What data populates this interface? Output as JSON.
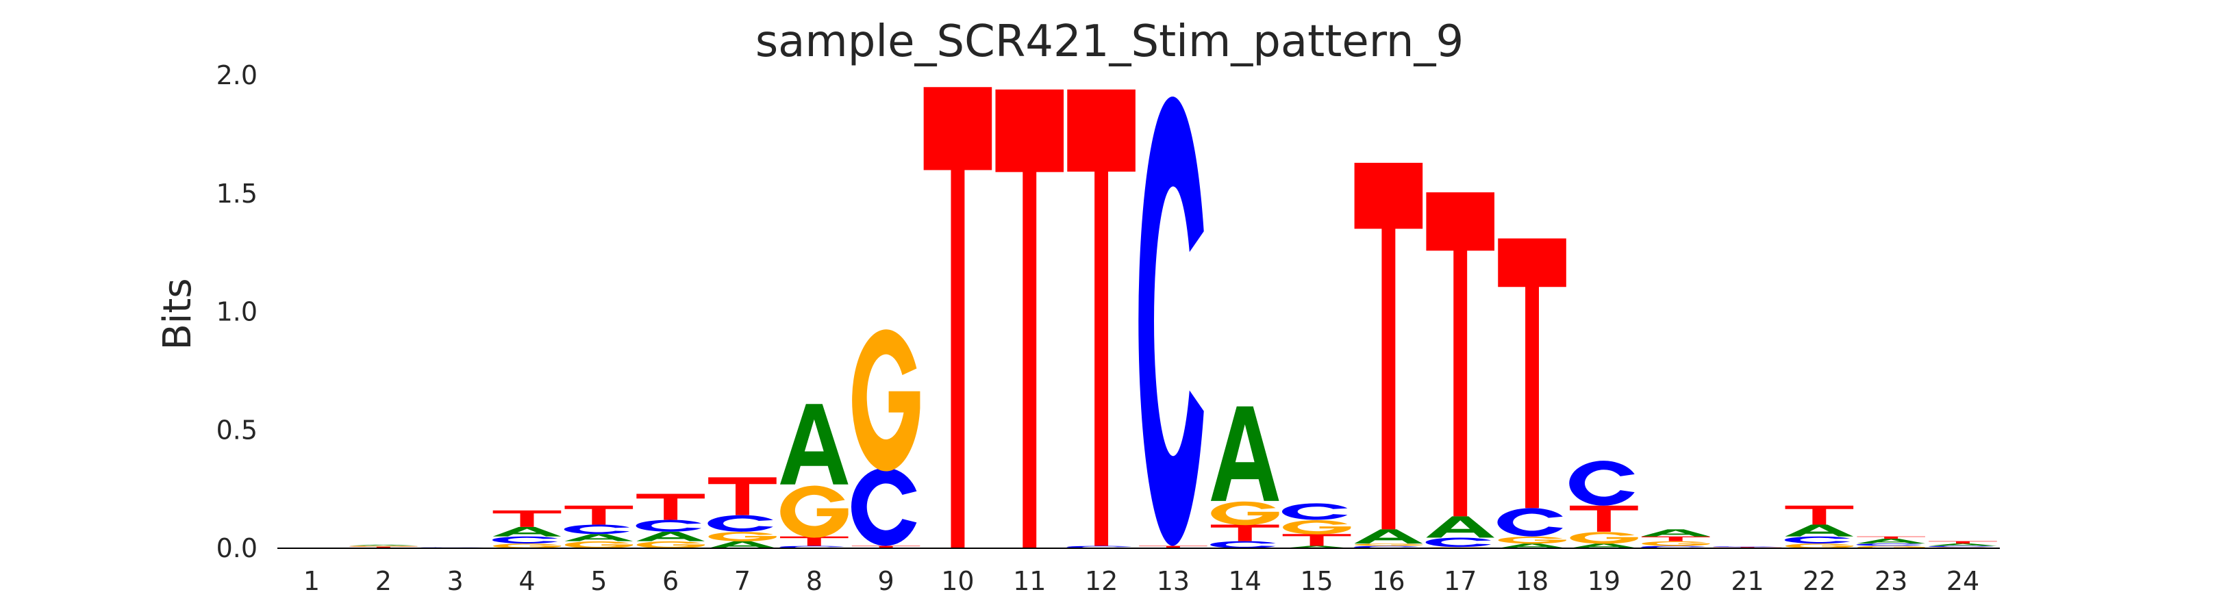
{
  "chart_data": {
    "type": "sequence-logo",
    "title": "sample_SCR421_Stim_pattern_9",
    "xlabel": "",
    "ylabel": "Bits",
    "ylim": [
      0,
      2.0
    ],
    "yticks": [
      "0.0",
      "0.5",
      "1.0",
      "1.5",
      "2.0"
    ],
    "ytick_values": [
      0,
      0.5,
      1.0,
      1.5,
      2.0
    ],
    "xticks": [
      "1",
      "2",
      "3",
      "4",
      "5",
      "6",
      "7",
      "8",
      "9",
      "10",
      "11",
      "12",
      "13",
      "14",
      "15",
      "16",
      "17",
      "18",
      "19",
      "20",
      "21",
      "22",
      "23",
      "24"
    ],
    "grid": false,
    "colors": {
      "A": "#008000",
      "C": "#0000ff",
      "G": "#ffa500",
      "T": "#ff0000"
    },
    "positions": [
      [],
      [
        [
          "C",
          0.003
        ],
        [
          "T",
          0.004
        ],
        [
          "G",
          0.004
        ],
        [
          "A",
          0.004
        ]
      ],
      [
        [
          "A",
          0.002
        ],
        [
          "C",
          0.002
        ]
      ],
      [
        [
          "G",
          0.02
        ],
        [
          "C",
          0.03
        ],
        [
          "A",
          0.04
        ],
        [
          "T",
          0.07
        ]
      ],
      [
        [
          "G",
          0.03
        ],
        [
          "A",
          0.03
        ],
        [
          "C",
          0.04
        ],
        [
          "T",
          0.08
        ]
      ],
      [
        [
          "G",
          0.03
        ],
        [
          "A",
          0.04
        ],
        [
          "C",
          0.05
        ],
        [
          "T",
          0.11
        ]
      ],
      [
        [
          "A",
          0.03
        ],
        [
          "G",
          0.04
        ],
        [
          "C",
          0.07
        ],
        [
          "T",
          0.16
        ]
      ],
      [
        [
          "C",
          0.01
        ],
        [
          "T",
          0.04
        ],
        [
          "G",
          0.22
        ],
        [
          "A",
          0.34
        ]
      ],
      [
        [
          "T",
          0.01
        ],
        [
          "C",
          0.33
        ],
        [
          "G",
          0.6
        ]
      ],
      [
        [
          "T",
          1.95
        ]
      ],
      [
        [
          "T",
          1.94
        ]
      ],
      [
        [
          "C",
          0.01
        ],
        [
          "T",
          1.93
        ]
      ],
      [
        [
          "T",
          0.01
        ],
        [
          "C",
          1.9
        ]
      ],
      [
        [
          "C",
          0.03
        ],
        [
          "T",
          0.07
        ],
        [
          "G",
          0.1
        ],
        [
          "A",
          0.4
        ]
      ],
      [
        [
          "A",
          0.01
        ],
        [
          "T",
          0.05
        ],
        [
          "G",
          0.06
        ],
        [
          "C",
          0.07
        ]
      ],
      [
        [
          "C",
          0.01
        ],
        [
          "G",
          0.01
        ],
        [
          "A",
          0.06
        ],
        [
          "T",
          1.55
        ]
      ],
      [
        [
          "G",
          0.005
        ],
        [
          "C",
          0.04
        ],
        [
          "A",
          0.09
        ],
        [
          "T",
          1.37
        ]
      ],
      [
        [
          "A",
          0.02
        ],
        [
          "G",
          0.03
        ],
        [
          "C",
          0.12
        ],
        [
          "T",
          1.14
        ]
      ],
      [
        [
          "A",
          0.02
        ],
        [
          "G",
          0.05
        ],
        [
          "T",
          0.11
        ],
        [
          "C",
          0.19
        ]
      ],
      [
        [
          "C",
          0.01
        ],
        [
          "G",
          0.02
        ],
        [
          "T",
          0.02
        ],
        [
          "A",
          0.03
        ]
      ],
      [
        [
          "G",
          0.002
        ],
        [
          "T",
          0.003
        ],
        [
          "C",
          0.003
        ]
      ],
      [
        [
          "G",
          0.02
        ],
        [
          "C",
          0.03
        ],
        [
          "A",
          0.05
        ],
        [
          "T",
          0.08
        ]
      ],
      [
        [
          "G",
          0.01
        ],
        [
          "C",
          0.01
        ],
        [
          "A",
          0.02
        ],
        [
          "T",
          0.01
        ]
      ],
      [
        [
          "G",
          0.005
        ],
        [
          "C",
          0.005
        ],
        [
          "A",
          0.01
        ],
        [
          "T",
          0.01
        ]
      ]
    ]
  }
}
